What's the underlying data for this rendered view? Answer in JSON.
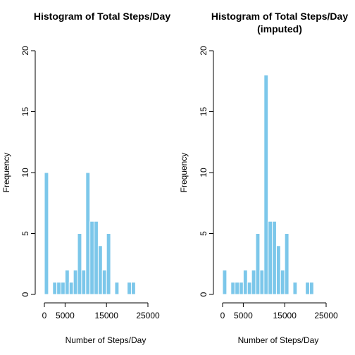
{
  "chart_data": [
    {
      "type": "bar",
      "title": "Histogram of Total Steps/Day",
      "title_line2": "",
      "xlabel": "Number of Steps/Day",
      "ylabel": "Frequency",
      "bin_width": 1000,
      "bin_start": 0,
      "xlim": [
        0,
        25000
      ],
      "ylim": [
        0,
        20
      ],
      "x_ticks": [
        0,
        5000,
        15000,
        25000
      ],
      "y_ticks": [
        0,
        5,
        10,
        15,
        20
      ],
      "bar_color": "#7cc7ea",
      "values": [
        10,
        0,
        1,
        1,
        1,
        2,
        1,
        2,
        5,
        2,
        10,
        6,
        6,
        4,
        2,
        5,
        0,
        1,
        0,
        0,
        1,
        1
      ]
    },
    {
      "type": "bar",
      "title": "Histogram of Total Steps/Day",
      "title_line2": "(imputed)",
      "xlabel": "Number of Steps/Day",
      "ylabel": "Frequency",
      "bin_width": 1000,
      "bin_start": 0,
      "xlim": [
        0,
        25000
      ],
      "ylim": [
        0,
        20
      ],
      "x_ticks": [
        0,
        5000,
        15000,
        25000
      ],
      "y_ticks": [
        0,
        5,
        10,
        15,
        20
      ],
      "bar_color": "#7cc7ea",
      "values": [
        2,
        0,
        1,
        1,
        1,
        2,
        1,
        2,
        5,
        2,
        18,
        6,
        6,
        4,
        2,
        5,
        0,
        1,
        0,
        0,
        1,
        1
      ]
    }
  ]
}
